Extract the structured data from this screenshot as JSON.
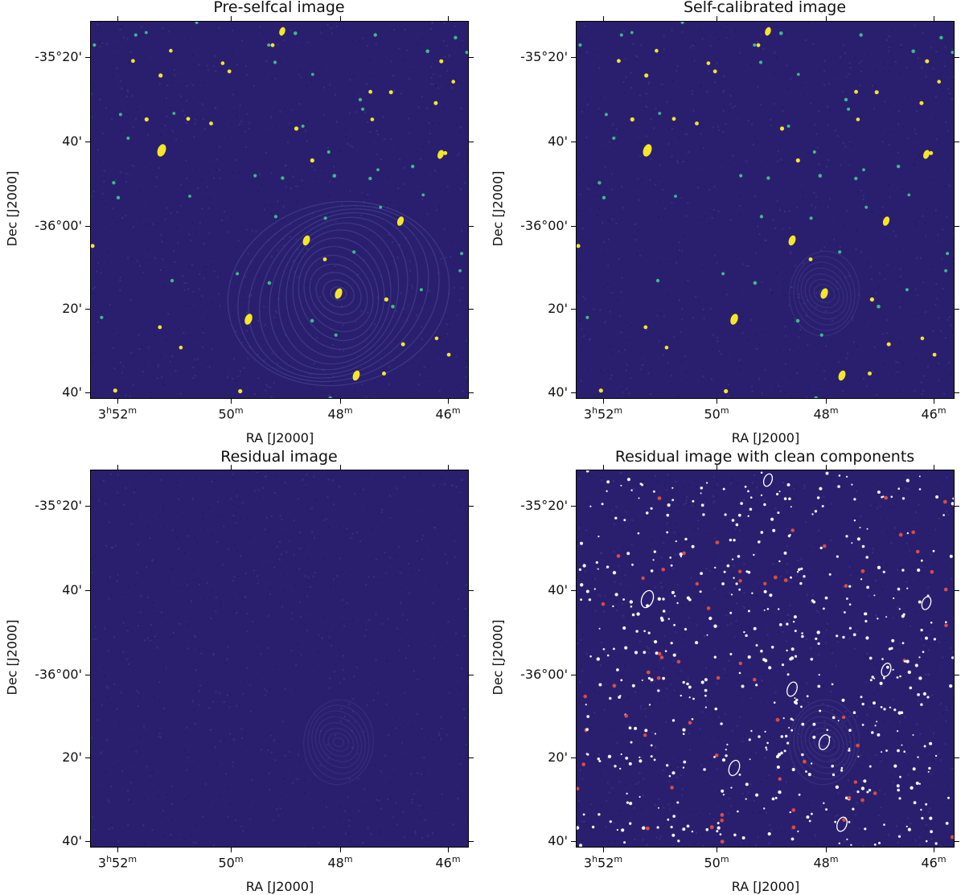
{
  "panels": [
    {
      "title": "Pre-selfcal image",
      "style": "preselfcal"
    },
    {
      "title": "Self-calibrated image",
      "style": "selfcal"
    },
    {
      "title": "Residual image",
      "style": "residual"
    },
    {
      "title": "Residual image with clean components",
      "style": "components"
    }
  ],
  "axes": {
    "xlabel": "RA [J2000]",
    "ylabel": "Dec [J2000]",
    "xticks": [
      {
        "label": "3",
        "h": "h",
        "m": "52",
        "msup": "m",
        "pre": "3"
      },
      {
        "label": "50",
        "msup": "m"
      },
      {
        "label": "48",
        "msup": "m"
      },
      {
        "label": "46",
        "msup": "m"
      }
    ],
    "yticks": [
      "-35°20'",
      "40'",
      "-36°00'",
      "20'",
      "40'"
    ]
  },
  "colors": {
    "background": "#2a1f6e",
    "source": "#f5e62a",
    "source_mid": "#3fb98a",
    "contour": "#ffffff",
    "component": "#e05040"
  }
}
